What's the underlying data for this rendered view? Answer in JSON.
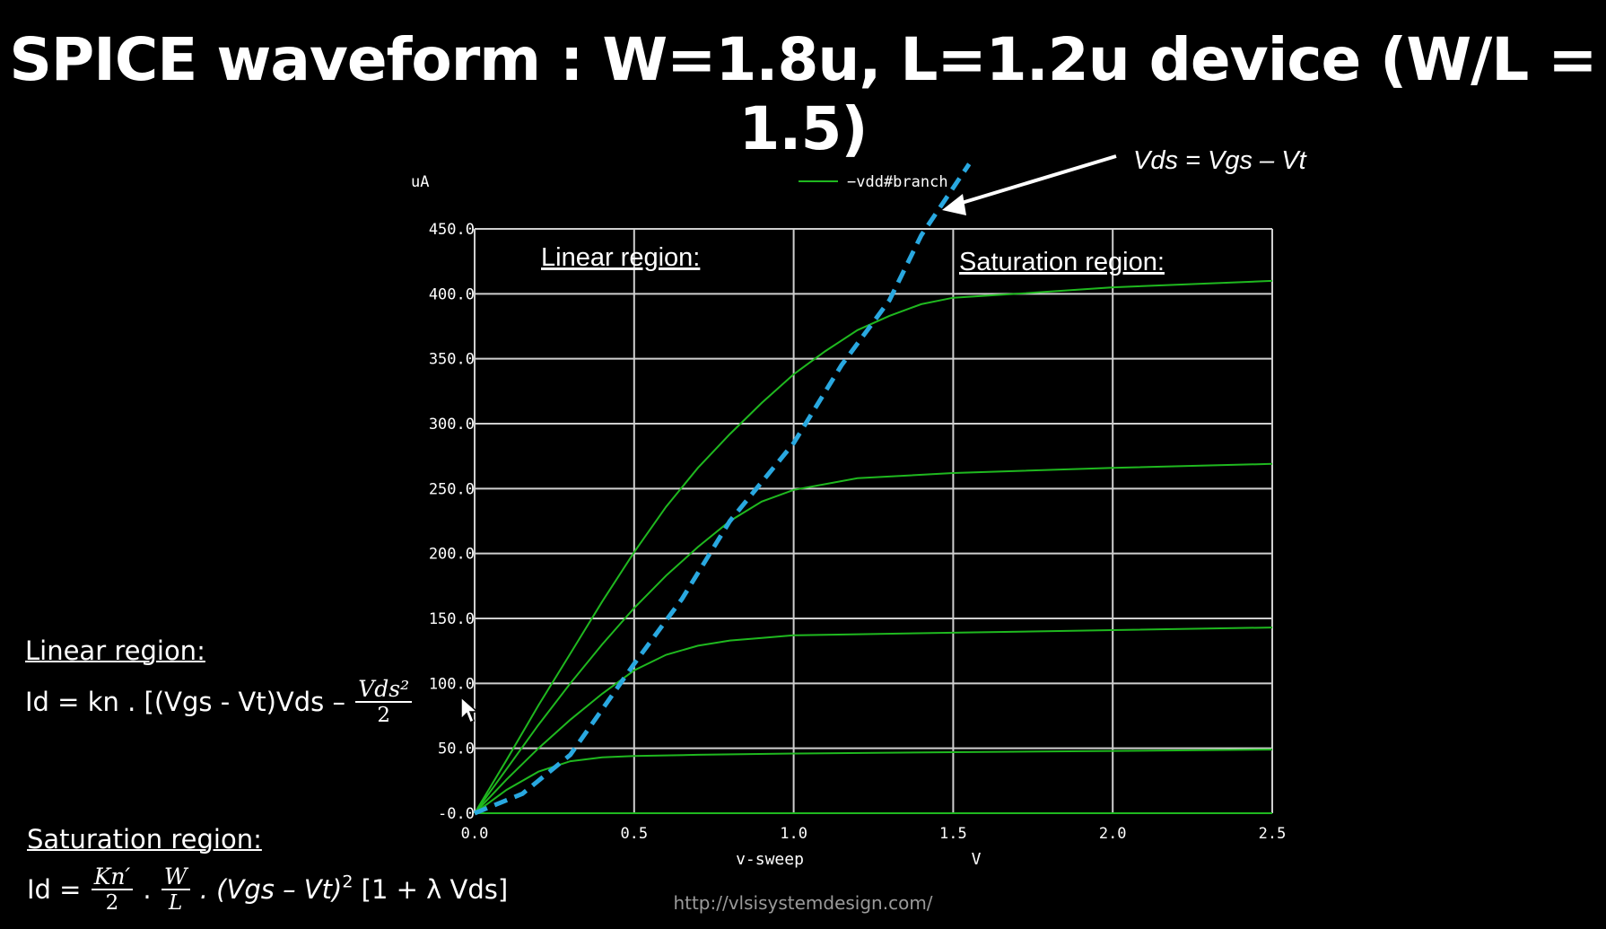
{
  "title": "SPICE waveform : W=1.8u, L=1.2u device (W/L = 1.5)",
  "url": "http://vlsisystemdesign.com/",
  "colors": {
    "background": "#000000",
    "grid": "#cfcfcf",
    "curve": "#1fb81f",
    "locus": "#29a8e0",
    "text": "#ffffff"
  },
  "chart_data": {
    "type": "line",
    "ylabel": "uA",
    "xlabel": "v-sweep",
    "xunit": "V",
    "xlim": [
      0,
      2.5
    ],
    "ylim": [
      0,
      450
    ],
    "xticks": [
      "0.0",
      "0.5",
      "1.0",
      "1.5",
      "2.0",
      "2.5"
    ],
    "yticks": [
      "-0.0",
      "50.0",
      "100.0",
      "150.0",
      "200.0",
      "250.0",
      "300.0",
      "350.0",
      "400.0",
      "450.0"
    ],
    "grid": true,
    "legend": {
      "label": "−vdd#branch",
      "position": "top-center"
    },
    "series": [
      {
        "x": [
          0,
          0.25,
          1.0,
          2.5
        ],
        "values": [
          0,
          0,
          0,
          0
        ]
      },
      {
        "x": [
          0,
          0.1,
          0.2,
          0.3,
          0.4,
          0.5,
          0.7,
          1.0,
          1.5,
          2.0,
          2.5
        ],
        "values": [
          0,
          18,
          32,
          40,
          43,
          44,
          45,
          46,
          47,
          48,
          49
        ]
      },
      {
        "x": [
          0,
          0.1,
          0.2,
          0.3,
          0.4,
          0.5,
          0.6,
          0.7,
          0.8,
          0.9,
          1.0,
          1.5,
          2.0,
          2.5
        ],
        "values": [
          0,
          26,
          50,
          72,
          92,
          110,
          122,
          129,
          133,
          135,
          137,
          139,
          141,
          143
        ]
      },
      {
        "x": [
          0,
          0.1,
          0.2,
          0.3,
          0.4,
          0.5,
          0.6,
          0.7,
          0.8,
          0.9,
          1.0,
          1.2,
          1.5,
          2.0,
          2.5
        ],
        "values": [
          0,
          34,
          68,
          100,
          130,
          158,
          183,
          205,
          225,
          240,
          249,
          258,
          262,
          266,
          269
        ]
      },
      {
        "x": [
          0,
          0.1,
          0.2,
          0.3,
          0.4,
          0.5,
          0.6,
          0.7,
          0.8,
          0.9,
          1.0,
          1.1,
          1.2,
          1.3,
          1.4,
          1.5,
          1.7,
          2.0,
          2.5
        ],
        "values": [
          0,
          41,
          83,
          123,
          163,
          201,
          236,
          266,
          292,
          316,
          338,
          356,
          372,
          383,
          392,
          397,
          400,
          405,
          410
        ]
      }
    ],
    "locus": {
      "x": [
        0.0,
        0.15,
        0.3,
        0.5,
        0.65,
        0.8,
        1.0,
        1.15,
        1.3,
        1.4,
        1.55
      ],
      "values": [
        0,
        15,
        45,
        115,
        165,
        225,
        285,
        345,
        395,
        445,
        500
      ]
    },
    "annotations": {
      "vds_locus": "Vds = Vgs – Vt",
      "linear_region": "Linear region:",
      "saturation_region": "Saturation region:"
    }
  },
  "equations": {
    "linear_heading": "Linear region:",
    "linear_lhs": "Id = kn . [(Vgs - Vt)Vds –",
    "linear_num": "Vds²",
    "linear_den": "2",
    "sat_heading": "Saturation region:",
    "sat_lhs": "Id =",
    "sat_frac1_num": "Kn′",
    "sat_frac1_den": "2",
    "sat_dot1": ".",
    "sat_frac2_num": "W",
    "sat_frac2_den": "L",
    "sat_rest": ". (Vgs – Vt)",
    "sat_exp": "2",
    "sat_tail": "[1 + λ Vds]"
  }
}
